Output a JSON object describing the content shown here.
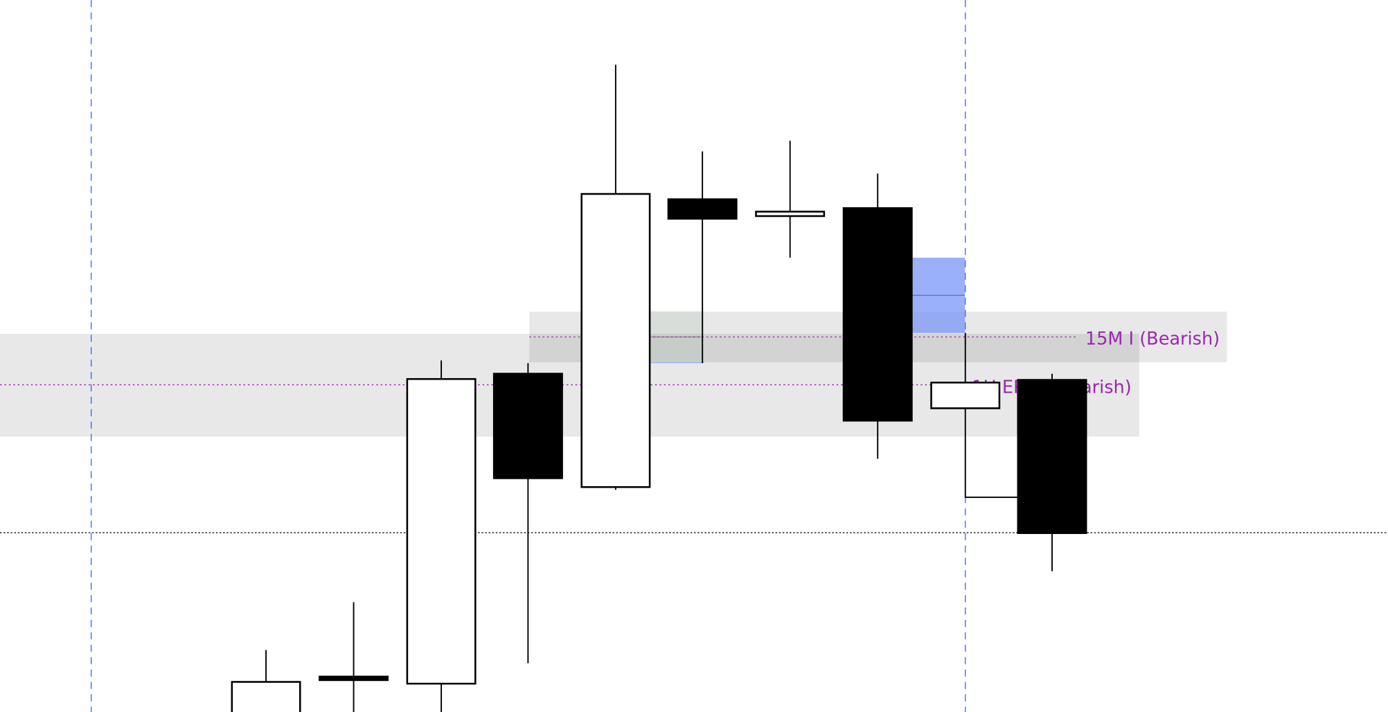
{
  "chart_data": {
    "type": "candlestick",
    "title": "",
    "xlabel": "",
    "ylabel": "",
    "grid": false,
    "candles": [
      "bullish",
      "bearish-doji",
      "bullish",
      "bearish",
      "bullish",
      "bearish",
      "bullish-doji",
      "bearish",
      "bullish",
      "bearish"
    ],
    "zones": [
      {
        "label": "15M I (Bearish)",
        "color": "#9c27b0"
      },
      {
        "label": "1H EPT I (Bearish)",
        "color": "#9c27b0"
      }
    ],
    "highlight_color": "#98aef8",
    "session_line_color": "#2962ff"
  }
}
